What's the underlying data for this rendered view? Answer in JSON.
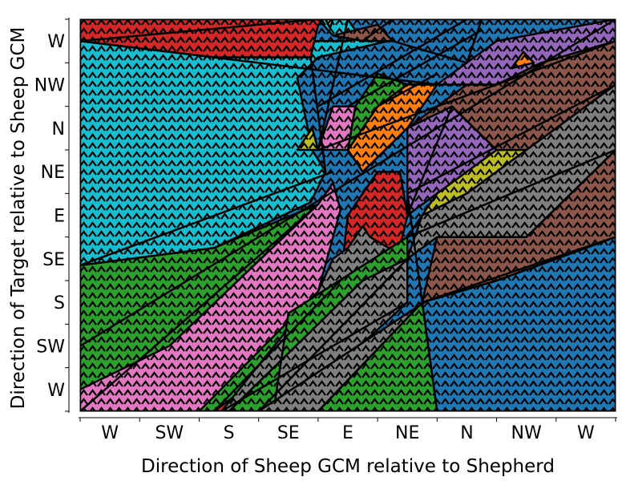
{
  "chart_data": {
    "type": "area",
    "xlabel": "Direction of Sheep GCM relative to Shepherd",
    "ylabel": "Direction of Target relative to Sheep GCM",
    "x_ticks": [
      "W",
      "SW",
      "S",
      "SE",
      "E",
      "NE",
      "N",
      "NW",
      "W"
    ],
    "y_ticks": [
      "W",
      "SW",
      "S",
      "SE",
      "E",
      "NE",
      "N",
      "NW",
      "W"
    ],
    "xlim": [
      -180,
      180
    ],
    "ylim": [
      -180,
      180
    ],
    "grid": false,
    "fill_pattern": "arrows",
    "regions": [
      {
        "color": "#1f77b4",
        "points": [
          [
            -180,
            180
          ],
          [
            -180,
            -180
          ],
          [
            180,
            -180
          ],
          [
            180,
            180
          ]
        ]
      },
      {
        "color": "#17becf",
        "points": [
          [
            -180,
            160
          ],
          [
            -180,
            -46
          ],
          [
            -90,
            -30
          ],
          [
            -25,
            12
          ],
          [
            -15,
            40
          ],
          [
            -24,
            60
          ],
          [
            -34,
            126
          ],
          [
            -20,
            145
          ],
          [
            90,
            180
          ],
          [
            85,
            180
          ],
          [
            30,
            168
          ],
          [
            0,
            160
          ],
          [
            -40,
            160
          ],
          [
            -110,
            160
          ]
        ]
      },
      {
        "color": "#d62728",
        "points": [
          [
            -180,
            180
          ],
          [
            -180,
            160
          ],
          [
            -90,
            145
          ],
          [
            -25,
            145
          ],
          [
            -20,
            175
          ],
          [
            -5,
            180
          ]
        ]
      },
      {
        "color": "#2ca02c",
        "points": [
          [
            -180,
            -180
          ],
          [
            -180,
            -46
          ],
          [
            -90,
            -30
          ],
          [
            -20,
            10
          ],
          [
            -20,
            -20
          ],
          [
            -60,
            -180
          ]
        ]
      },
      {
        "color": "#e377c2",
        "points": [
          [
            -180,
            -180
          ],
          [
            -180,
            -160
          ],
          [
            -120,
            -120
          ],
          [
            -20,
            10
          ],
          [
            -10,
            30
          ],
          [
            -5,
            5
          ],
          [
            -20,
            -70
          ],
          [
            -100,
            -180
          ]
        ]
      },
      {
        "color": "#d62728",
        "points": [
          [
            -90,
            -180
          ],
          [
            -40,
            -180
          ],
          [
            -5,
            -60
          ],
          [
            0,
            0
          ],
          [
            20,
            40
          ],
          [
            35,
            40
          ],
          [
            40,
            0
          ],
          [
            30,
            -60
          ],
          [
            10,
            -60
          ],
          [
            -10,
            -100
          ]
        ]
      },
      {
        "color": "#7f7f7f",
        "points": [
          [
            -85,
            -180
          ],
          [
            -20,
            -70
          ],
          [
            -10,
            -40
          ],
          [
            0,
            -30
          ],
          [
            10,
            -10
          ],
          [
            15,
            -20
          ],
          [
            40,
            -40
          ],
          [
            40,
            -80
          ],
          [
            -40,
            -180
          ]
        ]
      },
      {
        "color": "#2ca02c",
        "points": [
          [
            -80,
            -180
          ],
          [
            10,
            -60
          ],
          [
            40,
            -40
          ],
          [
            40,
            -20
          ],
          [
            -40,
            -90
          ],
          [
            -50,
            -180
          ]
        ]
      },
      {
        "color": "#7f7f7f",
        "points": [
          [
            -60,
            -180
          ],
          [
            40,
            -90
          ],
          [
            120,
            -20
          ],
          [
            140,
            10
          ],
          [
            180,
            60
          ],
          [
            180,
            -20
          ],
          [
            100,
            -60
          ],
          [
            50,
            -80
          ],
          [
            20,
            -180
          ]
        ]
      },
      {
        "color": "#2ca02c",
        "points": [
          [
            -20,
            -180
          ],
          [
            50,
            -80
          ],
          [
            60,
            -180
          ]
        ]
      },
      {
        "color": "#8c564b",
        "points": [
          [
            50,
            -80
          ],
          [
            100,
            -60
          ],
          [
            180,
            -20
          ],
          [
            180,
            60
          ],
          [
            120,
            -20
          ],
          [
            140,
            10
          ],
          [
            100,
            0
          ],
          [
            60,
            -20
          ]
        ]
      },
      {
        "color": "#7f7f7f",
        "points": [
          [
            40,
            -40
          ],
          [
            60,
            -20
          ],
          [
            120,
            -20
          ],
          [
            180,
            60
          ],
          [
            180,
            120
          ],
          [
            120,
            60
          ],
          [
            80,
            20
          ],
          [
            50,
            0
          ]
        ]
      },
      {
        "color": "#bcbd22",
        "points": [
          [
            40,
            -20
          ],
          [
            50,
            0
          ],
          [
            80,
            20
          ],
          [
            120,
            60
          ],
          [
            100,
            60
          ],
          [
            60,
            20
          ]
        ]
      },
      {
        "color": "#9467bd",
        "points": [
          [
            40,
            0
          ],
          [
            60,
            20
          ],
          [
            100,
            60
          ],
          [
            70,
            100
          ],
          [
            40,
            80
          ]
        ]
      },
      {
        "color": "#8c564b",
        "points": [
          [
            40,
            80
          ],
          [
            70,
            100
          ],
          [
            100,
            60
          ],
          [
            120,
            60
          ],
          [
            180,
            120
          ],
          [
            180,
            160
          ],
          [
            130,
            140
          ],
          [
            100,
            120
          ],
          [
            80,
            120
          ]
        ]
      },
      {
        "color": "#9467bd",
        "points": [
          [
            60,
            120
          ],
          [
            100,
            120
          ],
          [
            130,
            140
          ],
          [
            180,
            160
          ],
          [
            180,
            180
          ],
          [
            100,
            160
          ],
          [
            80,
            140
          ]
        ]
      },
      {
        "color": "#ff7f0e",
        "points": [
          [
            10,
            40
          ],
          [
            40,
            80
          ],
          [
            60,
            120
          ],
          [
            40,
            120
          ],
          [
            20,
            100
          ],
          [
            0,
            60
          ]
        ]
      },
      {
        "color": "#2ca02c",
        "points": [
          [
            0,
            60
          ],
          [
            20,
            100
          ],
          [
            40,
            120
          ],
          [
            20,
            130
          ],
          [
            5,
            100
          ]
        ]
      },
      {
        "color": "#e377c2",
        "points": [
          [
            -20,
            60
          ],
          [
            0,
            60
          ],
          [
            5,
            100
          ],
          [
            -10,
            100
          ]
        ]
      },
      {
        "color": "#bcbd22",
        "points": [
          [
            -34,
            60
          ],
          [
            -20,
            60
          ],
          [
            -24,
            80
          ]
        ]
      },
      {
        "color": "#17becf",
        "points": [
          [
            -20,
            180
          ],
          [
            0,
            180
          ],
          [
            10,
            160
          ],
          [
            -10,
            165
          ]
        ]
      },
      {
        "color": "#1f77b4",
        "points": [
          [
            0,
            180
          ],
          [
            90,
            180
          ],
          [
            80,
            140
          ],
          [
            30,
            160
          ],
          [
            10,
            160
          ]
        ]
      },
      {
        "color": "#8c564b",
        "points": [
          [
            -10,
            165
          ],
          [
            10,
            160
          ],
          [
            30,
            160
          ],
          [
            20,
            175
          ]
        ]
      },
      {
        "color": "#ff7f0e",
        "points": [
          [
            110,
            135
          ],
          [
            125,
            140
          ],
          [
            118,
            150
          ]
        ]
      },
      {
        "color": "#bcbd22",
        "points": [
          [
            -15,
            180
          ],
          [
            -10,
            180
          ],
          [
            -12,
            172
          ]
        ]
      }
    ],
    "boundary_lines": [
      [
        [
          -180,
          160
        ],
        [
          -20,
          180
        ]
      ],
      [
        [
          -180,
          160
        ],
        [
          60,
          120
        ]
      ],
      [
        [
          -180,
          -46
        ],
        [
          -10,
          40
        ]
      ],
      [
        [
          -180,
          -120
        ],
        [
          180,
          180
        ]
      ],
      [
        [
          -180,
          -180
        ],
        [
          -20,
          10
        ]
      ],
      [
        [
          -90,
          -180
        ],
        [
          -5,
          -60
        ]
      ],
      [
        [
          -85,
          -180
        ],
        [
          40,
          -80
        ]
      ],
      [
        [
          -60,
          -180
        ],
        [
          40,
          -40
        ]
      ],
      [
        [
          -20,
          -180
        ],
        [
          50,
          -80
        ]
      ],
      [
        [
          60,
          -180
        ],
        [
          40,
          20
        ]
      ],
      [
        [
          40,
          0
        ],
        [
          70,
          100
        ]
      ],
      [
        [
          40,
          20
        ],
        [
          180,
          120
        ]
      ],
      [
        [
          40,
          -20
        ],
        [
          180,
          60
        ]
      ],
      [
        [
          50,
          -80
        ],
        [
          180,
          -20
        ]
      ],
      [
        [
          -25,
          145
        ],
        [
          -15,
          40
        ]
      ],
      [
        [
          -34,
          126
        ],
        [
          -20,
          145
        ]
      ],
      [
        [
          -20,
          100
        ],
        [
          80,
          180
        ]
      ],
      [
        [
          0,
          100
        ],
        [
          90,
          170
        ]
      ],
      [
        [
          -20,
          60
        ],
        [
          180,
          160
        ]
      ],
      [
        [
          0,
          180
        ],
        [
          -20,
          60
        ]
      ],
      [
        [
          10,
          160
        ],
        [
          30,
          180
        ]
      ],
      [
        [
          20,
          100
        ],
        [
          60,
          130
        ]
      ]
    ]
  }
}
